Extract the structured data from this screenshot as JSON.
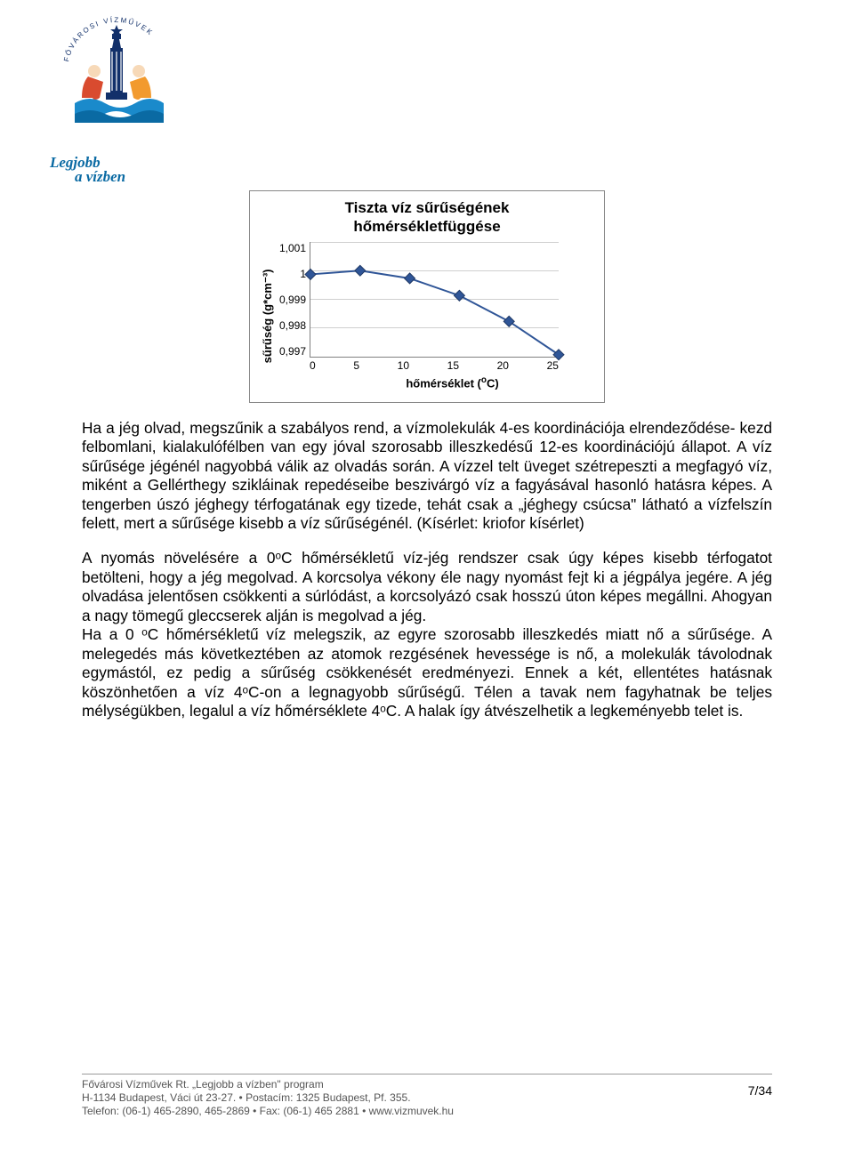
{
  "logo": {
    "top_arc_text": "FŐVÁROSI • VÍZMŰVEK",
    "slogan_line1": "Legjobb",
    "slogan_line2": "a vízben",
    "colors": {
      "blue": "#0a6aa3",
      "navy": "#12306a",
      "red": "#d94b2f",
      "orange": "#f29a2e",
      "cyan": "#1a8acb",
      "skin": "#f7d9b8"
    }
  },
  "chart": {
    "type": "line",
    "title_line1": "Tiszta víz sűrűségének",
    "title_line2": "hőmérsékletfüggése",
    "y_label": "sűrűség (g*cm⁻³)",
    "x_label_plain": "hőmérséklet (",
    "x_label_sup": "o",
    "x_label_tail": "C)",
    "x_ticks": [
      "0",
      "5",
      "10",
      "15",
      "20",
      "25"
    ],
    "y_ticks": [
      "1,001",
      "1",
      "0,999",
      "0,998",
      "0,997"
    ],
    "xlim": [
      0,
      25
    ],
    "ylim": [
      0.997,
      1.001
    ],
    "grid_color": "#cfcfcf",
    "axis_color": "#808080",
    "series_color": "#2f5597",
    "marker_color": "#2f5597",
    "marker_shape": "diamond",
    "marker_size": 6,
    "line_width": 2,
    "background_color": "#ffffff",
    "points": [
      {
        "x": 0,
        "y": 0.99987
      },
      {
        "x": 5,
        "y": 1.0
      },
      {
        "x": 10,
        "y": 0.99973
      },
      {
        "x": 15,
        "y": 0.99913
      },
      {
        "x": 20,
        "y": 0.99823
      },
      {
        "x": 25,
        "y": 0.99707
      }
    ],
    "title_fontsize": 17,
    "label_fontsize": 13,
    "tick_fontsize": 12
  },
  "paragraphs": {
    "p1": "Ha a jég olvad, megszűnik a szabályos rend, a vízmolekulák 4-es koordinációja elrendeződése- kezd felbomlani, kialakulófélben van egy jóval szorosabb illeszkedésű 12-es koordinációjú állapot. A víz sűrűsége jégénél nagyobbá válik az olvadás során. A vízzel telt üveget szétrepeszti a megfagyó víz, miként a Gellérthegy szikláinak repedéseibe beszivárgó víz a fagyásával hasonló hatásra képes. A tengerben úszó jéghegy térfogatának egy tizede, tehát csak a „jéghegy csúcsa\" látható a vízfelszín felett, mert a sűrűsége kisebb a víz sűrűségénél. (Kísérlet: kriofor kísérlet)",
    "p2": "A nyomás növelésére a 0ᵒC hőmérsékletű víz-jég rendszer csak úgy képes kisebb térfogatot betölteni, hogy a jég megolvad. A korcsolya vékony éle nagy nyomást fejt ki a jégpálya jegére. A jég olvadása jelentősen csökkenti a súrlódást, a korcsolyázó csak hosszú úton képes megállni. Ahogyan a nagy tömegű gleccserek alján is megolvad a jég.",
    "p3": "Ha a 0 ᵒC hőmérsékletű víz melegszik, az egyre szorosabb illeszkedés miatt nő a sűrűsége. A melegedés más következtében az atomok rezgésének hevessége is nő, a molekulák  távolodnak egymástól, ez pedig a sűrűség csökkenését eredményezi. Ennek a két, ellentétes hatásnak köszönhetően a víz 4ᵒC-on a legnagyobb sűrűségű. Télen a tavak nem fagyhatnak be teljes mélységükben, legalul a víz hőmérséklete 4ᵒC. A  halak így átvészelhetik a legkeményebb telet is."
  },
  "footer": {
    "line1": "Fővárosi Vízművek Rt. „Legjobb a vízben\" program",
    "line2": "H-1134 Budapest, Váci út 23-27. • Postacím: 1325 Budapest, Pf. 355.",
    "line3": "Telefon: (06-1) 465-2890, 465-2869 • Fax: (06-1) 465 2881 • www.vizmuvek.hu",
    "page_number": "7/34"
  }
}
